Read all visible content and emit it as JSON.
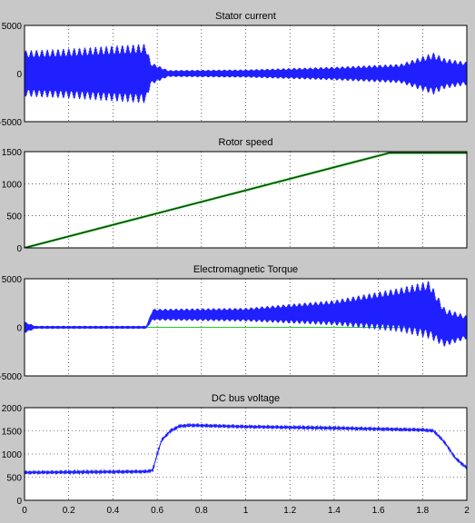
{
  "chart_data": [
    {
      "type": "line",
      "title": "Stator current",
      "xlim": [
        0,
        2
      ],
      "ylim": [
        -5000,
        5000
      ],
      "yticks": [
        "5000",
        "0",
        "-5000"
      ],
      "xticks": [],
      "grid": true,
      "series": [
        {
          "color": "#2020ff",
          "style": "oscillation",
          "envelope": [
            {
              "x": 0.0,
              "amp": 2400
            },
            {
              "x": 0.2,
              "amp": 2600
            },
            {
              "x": 0.4,
              "amp": 2900
            },
            {
              "x": 0.55,
              "amp": 3100
            },
            {
              "x": 0.57,
              "amp": 1200
            },
            {
              "x": 0.65,
              "amp": 350
            },
            {
              "x": 1.0,
              "amp": 420
            },
            {
              "x": 1.4,
              "amp": 700
            },
            {
              "x": 1.7,
              "amp": 1000
            },
            {
              "x": 1.85,
              "amp": 2200
            },
            {
              "x": 1.9,
              "amp": 1600
            },
            {
              "x": 2.0,
              "amp": 1200
            }
          ]
        }
      ]
    },
    {
      "type": "line",
      "title": "Rotor speed",
      "xlim": [
        0,
        2
      ],
      "ylim": [
        0,
        1500
      ],
      "yticks": [
        "1500",
        "1000",
        "500",
        "0"
      ],
      "xticks": [],
      "grid": true,
      "series": [
        {
          "color": "#20d020",
          "points": [
            [
              0,
              0
            ],
            [
              1.65,
              1480
            ],
            [
              2.0,
              1480
            ]
          ]
        },
        {
          "color": "#202020",
          "points": [
            [
              0,
              0
            ],
            [
              1.65,
              1480
            ],
            [
              2.0,
              1480
            ]
          ]
        },
        {
          "color": "#2020ff",
          "points": [
            [
              0,
              0
            ],
            [
              2.0,
              0
            ]
          ]
        }
      ]
    },
    {
      "type": "line",
      "title": "Electromagnetic Torque",
      "xlim": [
        0,
        2
      ],
      "ylim": [
        -5000,
        5000
      ],
      "yticks": [
        "5000",
        "0",
        "-5000"
      ],
      "xticks": [],
      "grid": true,
      "series": [
        {
          "color": "#20d020",
          "points": [
            [
              0,
              0
            ],
            [
              2.0,
              0
            ]
          ]
        },
        {
          "color": "#2020ff",
          "style": "oscillation",
          "envelope": [
            {
              "x": 0.0,
              "center": 0,
              "amp": 600
            },
            {
              "x": 0.05,
              "center": 0,
              "amp": 150
            },
            {
              "x": 0.55,
              "center": 0,
              "amp": 150
            },
            {
              "x": 0.58,
              "center": 1300,
              "amp": 600
            },
            {
              "x": 1.0,
              "center": 1300,
              "amp": 700
            },
            {
              "x": 1.4,
              "center": 1500,
              "amp": 1300
            },
            {
              "x": 1.7,
              "center": 1800,
              "amp": 2300
            },
            {
              "x": 1.83,
              "center": 1800,
              "amp": 3000
            },
            {
              "x": 1.9,
              "center": 0,
              "amp": 2000
            },
            {
              "x": 2.0,
              "center": 0,
              "amp": 1200
            }
          ]
        }
      ]
    },
    {
      "type": "line",
      "title": "DC bus voltage",
      "xlim": [
        0,
        2
      ],
      "ylim": [
        0,
        2000
      ],
      "yticks": [
        "2000",
        "1500",
        "1000",
        "500",
        "0"
      ],
      "xticks": [
        "0",
        "0.2",
        "0.4",
        "0.6",
        "0.8",
        "1",
        "1.2",
        "1.4",
        "1.6",
        "1.8",
        "2"
      ],
      "grid": true,
      "series": [
        {
          "color": "#2020ff",
          "ripple": 40,
          "points": [
            [
              0,
              600
            ],
            [
              0.55,
              620
            ],
            [
              0.58,
              650
            ],
            [
              0.6,
              1000
            ],
            [
              0.62,
              1300
            ],
            [
              0.66,
              1500
            ],
            [
              0.7,
              1600
            ],
            [
              0.75,
              1620
            ],
            [
              1.0,
              1590
            ],
            [
              1.4,
              1560
            ],
            [
              1.8,
              1520
            ],
            [
              1.85,
              1500
            ],
            [
              1.9,
              1250
            ],
            [
              1.95,
              900
            ],
            [
              2.0,
              700
            ]
          ]
        }
      ]
    }
  ]
}
